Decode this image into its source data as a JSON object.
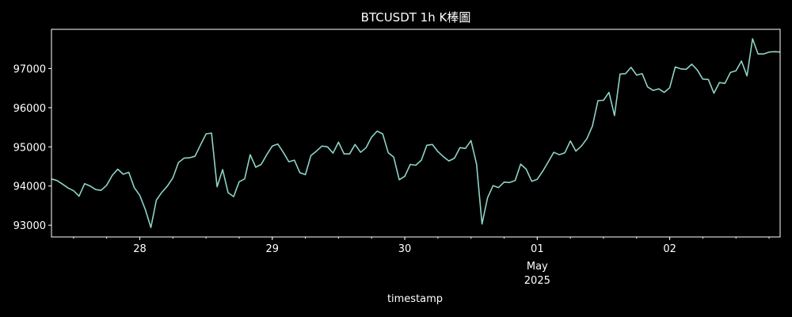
{
  "chart_data": {
    "type": "line",
    "title": "BTCUSDT 1h K棒圖",
    "xlabel": "timestamp",
    "ylabel": "",
    "xlim": [
      "2025-04-27T08:00",
      "2025-05-02T20:00"
    ],
    "ylim": [
      92700,
      98000
    ],
    "grid": false,
    "yticks": [
      {
        "value": 93000,
        "label": "93000"
      },
      {
        "value": 94000,
        "label": "94000"
      },
      {
        "value": 95000,
        "label": "95000"
      },
      {
        "value": 96000,
        "label": "96000"
      },
      {
        "value": 97000,
        "label": "97000"
      }
    ],
    "xticks": [
      {
        "value": "2025-04-28T00:00",
        "label": "28"
      },
      {
        "value": "2025-04-29T00:00",
        "label": "29"
      },
      {
        "value": "2025-04-30T00:00",
        "label": "30"
      },
      {
        "value": "2025-05-01T00:00",
        "label": "01",
        "sub1": "May",
        "sub2": "2025"
      },
      {
        "value": "2025-05-02T00:00",
        "label": "02"
      }
    ],
    "series": [
      {
        "color": "#8dd3c7",
        "x": [
          "2025-04-27T08:00",
          "2025-04-27T09:00",
          "2025-04-27T10:00",
          "2025-04-27T11:00",
          "2025-04-27T12:00",
          "2025-04-27T13:00",
          "2025-04-27T14:00",
          "2025-04-27T15:00",
          "2025-04-27T16:00",
          "2025-04-27T17:00",
          "2025-04-27T18:00",
          "2025-04-27T19:00",
          "2025-04-27T20:00",
          "2025-04-27T21:00",
          "2025-04-27T22:00",
          "2025-04-27T23:00",
          "2025-04-28T00:00",
          "2025-04-28T01:00",
          "2025-04-28T02:00",
          "2025-04-28T03:00",
          "2025-04-28T04:00",
          "2025-04-28T05:00",
          "2025-04-28T06:00",
          "2025-04-28T07:00",
          "2025-04-28T08:00",
          "2025-04-28T09:00",
          "2025-04-28T10:00",
          "2025-04-28T11:00",
          "2025-04-28T12:00",
          "2025-04-28T13:00",
          "2025-04-28T14:00",
          "2025-04-28T15:00",
          "2025-04-28T16:00",
          "2025-04-28T17:00",
          "2025-04-28T18:00",
          "2025-04-28T19:00",
          "2025-04-28T20:00",
          "2025-04-28T21:00",
          "2025-04-28T22:00",
          "2025-04-28T23:00",
          "2025-04-29T00:00",
          "2025-04-29T01:00",
          "2025-04-29T02:00",
          "2025-04-29T03:00",
          "2025-04-29T04:00",
          "2025-04-29T05:00",
          "2025-04-29T06:00",
          "2025-04-29T07:00",
          "2025-04-29T08:00",
          "2025-04-29T09:00",
          "2025-04-29T10:00",
          "2025-04-29T11:00",
          "2025-04-29T12:00",
          "2025-04-29T13:00",
          "2025-04-29T14:00",
          "2025-04-29T15:00",
          "2025-04-29T16:00",
          "2025-04-29T17:00",
          "2025-04-29T18:00",
          "2025-04-29T19:00",
          "2025-04-29T20:00",
          "2025-04-29T21:00",
          "2025-04-29T22:00",
          "2025-04-29T23:00",
          "2025-04-30T00:00",
          "2025-04-30T01:00",
          "2025-04-30T02:00",
          "2025-04-30T03:00",
          "2025-04-30T04:00",
          "2025-04-30T05:00",
          "2025-04-30T06:00",
          "2025-04-30T07:00",
          "2025-04-30T08:00",
          "2025-04-30T09:00",
          "2025-04-30T10:00",
          "2025-04-30T11:00",
          "2025-04-30T12:00",
          "2025-04-30T13:00",
          "2025-04-30T14:00",
          "2025-04-30T15:00",
          "2025-04-30T16:00",
          "2025-04-30T17:00",
          "2025-04-30T18:00",
          "2025-04-30T19:00",
          "2025-04-30T20:00",
          "2025-04-30T21:00",
          "2025-04-30T22:00",
          "2025-04-30T23:00",
          "2025-05-01T00:00",
          "2025-05-01T01:00",
          "2025-05-01T02:00",
          "2025-05-01T03:00",
          "2025-05-01T04:00",
          "2025-05-01T05:00",
          "2025-05-01T06:00",
          "2025-05-01T07:00",
          "2025-05-01T08:00",
          "2025-05-01T09:00",
          "2025-05-01T10:00",
          "2025-05-01T11:00",
          "2025-05-01T12:00",
          "2025-05-01T13:00",
          "2025-05-01T14:00",
          "2025-05-01T15:00",
          "2025-05-01T16:00",
          "2025-05-01T17:00",
          "2025-05-01T18:00",
          "2025-05-01T19:00",
          "2025-05-01T20:00",
          "2025-05-01T21:00",
          "2025-05-01T22:00",
          "2025-05-01T23:00",
          "2025-05-02T00:00",
          "2025-05-02T01:00",
          "2025-05-02T02:00",
          "2025-05-02T03:00",
          "2025-05-02T04:00",
          "2025-05-02T05:00",
          "2025-05-02T06:00",
          "2025-05-02T07:00",
          "2025-05-02T08:00",
          "2025-05-02T09:00",
          "2025-05-02T10:00",
          "2025-05-02T11:00",
          "2025-05-02T12:00",
          "2025-05-02T13:00",
          "2025-05-02T14:00",
          "2025-05-02T15:00",
          "2025-05-02T16:00",
          "2025-05-02T17:00",
          "2025-05-02T18:00",
          "2025-05-02T19:00",
          "2025-05-02T20:00"
        ],
        "values": [
          94180,
          94140,
          94050,
          93950,
          93880,
          93740,
          94060,
          94000,
          93910,
          93890,
          94020,
          94270,
          94430,
          94300,
          94350,
          93960,
          93760,
          93400,
          92940,
          93640,
          93840,
          94000,
          94210,
          94600,
          94710,
          94720,
          94760,
          95050,
          95330,
          95350,
          93980,
          94420,
          93830,
          93730,
          94110,
          94180,
          94800,
          94480,
          94550,
          94800,
          95020,
          95070,
          94860,
          94620,
          94660,
          94340,
          94290,
          94780,
          94890,
          95020,
          95000,
          94840,
          95120,
          94820,
          94820,
          95060,
          94860,
          94980,
          95250,
          95400,
          95330,
          94850,
          94740,
          94160,
          94250,
          94550,
          94530,
          94660,
          95040,
          95060,
          94880,
          94750,
          94640,
          94710,
          94980,
          94960,
          95160,
          94560,
          93030,
          93700,
          94010,
          93960,
          94100,
          94090,
          94140,
          94560,
          94430,
          94120,
          94170,
          94380,
          94620,
          94860,
          94800,
          94850,
          95150,
          94890,
          95020,
          95210,
          95530,
          96180,
          96190,
          96390,
          95800,
          96860,
          96870,
          97030,
          96830,
          96870,
          96530,
          96440,
          96480,
          96390,
          96510,
          97040,
          96990,
          96980,
          97110,
          96960,
          96730,
          96720,
          96370,
          96640,
          96620,
          96900,
          96940,
          97190,
          96810,
          97760,
          97370,
          97370,
          97420,
          97430,
          97420
        ]
      }
    ]
  }
}
